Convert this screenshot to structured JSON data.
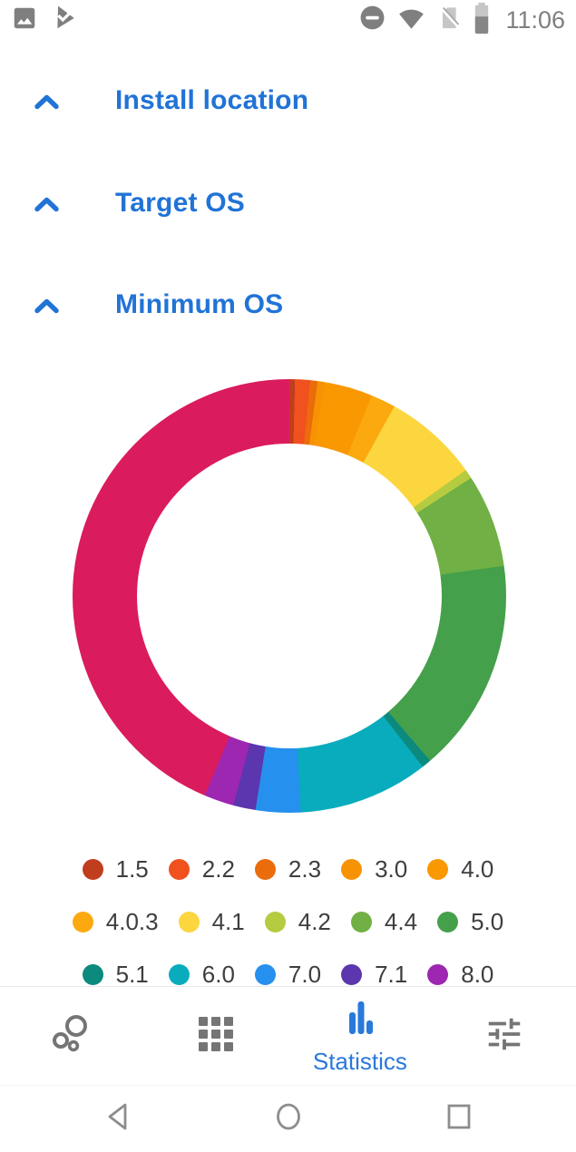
{
  "status_bar": {
    "time": "11:06",
    "left_icons": [
      "image-icon",
      "play-protect-icon"
    ],
    "right_icons": [
      "do-not-disturb-icon",
      "wifi-icon",
      "no-sim-icon",
      "battery-icon"
    ]
  },
  "sections": [
    {
      "title": "Install location",
      "state": "collapsed",
      "icon": "chevron-up"
    },
    {
      "title": "Target OS",
      "state": "collapsed",
      "icon": "chevron-up"
    },
    {
      "title": "Minimum OS",
      "state": "expanded",
      "icon": "chevron-up"
    }
  ],
  "chart_data": {
    "type": "pie",
    "donut": true,
    "title": "Minimum OS",
    "start_angle_deg": 0,
    "direction": "clockwise",
    "hole_ratio": 0.7,
    "legend_position": "bottom",
    "segments": [
      {
        "label": "1.5",
        "color": "#c03d1e",
        "degrees": 1.5,
        "percent": 0.4
      },
      {
        "label": "2.2",
        "color": "#f1501f",
        "degrees": 4.0,
        "percent": 1.1
      },
      {
        "label": "2.3",
        "color": "#eb6c0a",
        "degrees": 2.0,
        "percent": 0.6
      },
      {
        "label": "3.0",
        "color": "#f79303",
        "degrees": 2.0,
        "percent": 0.6
      },
      {
        "label": "4.0",
        "color": "#f99800",
        "degrees": 12.9,
        "percent": 3.6
      },
      {
        "label": "4.0.3",
        "color": "#fca90f",
        "degrees": 6.6,
        "percent": 1.8
      },
      {
        "label": "4.1",
        "color": "#fbd63e",
        "degrees": 25.5,
        "percent": 7.1
      },
      {
        "label": "4.2",
        "color": "#b5cc41",
        "degrees": 2.5,
        "percent": 0.7
      },
      {
        "label": "4.4",
        "color": "#70b044",
        "degrees": 25.0,
        "percent": 6.9
      },
      {
        "label": "5.0",
        "color": "#44a04a",
        "degrees": 57.5,
        "percent": 16.0
      },
      {
        "label": "5.1",
        "color": "#0b8a7d",
        "degrees": 2.5,
        "percent": 0.7
      },
      {
        "label": "6.0",
        "color": "#09acbd",
        "degrees": 35.0,
        "percent": 9.7
      },
      {
        "label": "7.0",
        "color": "#2590ee",
        "degrees": 12.0,
        "percent": 3.3
      },
      {
        "label": "7.1",
        "color": "#5b36ae",
        "degrees": 6.0,
        "percent": 1.7
      },
      {
        "label": "8.0",
        "color": "#9d27b0",
        "degrees": 8.0,
        "percent": 2.2
      },
      {
        "label": "",
        "color": "#da1b5e",
        "degrees": 157.0,
        "percent": 43.6
      }
    ]
  },
  "bottom_nav": {
    "items": [
      {
        "icon": "bubble-chart-icon",
        "label": "",
        "selected": false
      },
      {
        "icon": "apps-grid-icon",
        "label": "",
        "selected": false
      },
      {
        "icon": "bar-chart-icon",
        "label": "Statistics",
        "selected": true
      },
      {
        "icon": "tune-icon",
        "label": "",
        "selected": false
      }
    ],
    "selected_color": "#2979d9",
    "inactive_color": "#757575"
  },
  "android_nav": {
    "icons": [
      "back-icon",
      "home-icon",
      "recents-icon"
    ]
  },
  "colors": {
    "header_blue": "#2173d6",
    "nav_selected_blue": "#2979d9",
    "legend_text": "#3e3e3e",
    "status_gray": "#7f7f7f",
    "background": "#ffffff"
  }
}
